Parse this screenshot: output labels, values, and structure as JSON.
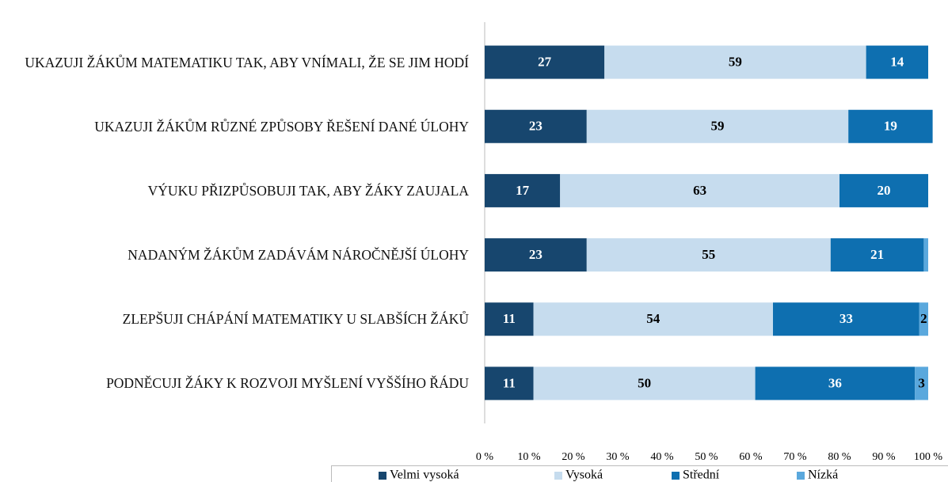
{
  "chart_data": {
    "type": "stacked_barh",
    "categories": [
      "UKAZUJI ŽÁKŮM MATEMATIKU TAK, ABY VNÍMALI, ŽE SE JIM HODÍ",
      "UKAZUJI ŽÁKŮM RŮZNÉ ZPŮSOBY ŘEŠENÍ DANÉ ÚLOHY",
      "VÝUKU PŘIZPŮSOBUJI TAK, ABY ŽÁKY ZAUJALA",
      "NADANÝM ŽÁKŮM ZADÁVÁM NÁROČNĚJŠÍ ÚLOHY",
      "ZLEPŠUJI CHÁPÁNÍ MATEMATIKY U SLABŠÍCH ŽÁKŮ",
      "PODNĚCUJI ŽÁKY K ROZVOJI MYŠLENÍ VYŠŠÍHO ŘÁDU"
    ],
    "series": [
      {
        "name": "Velmi vysoká",
        "color": "#17466e",
        "values": [
          27,
          23,
          17,
          23,
          11,
          11
        ]
      },
      {
        "name": "Vysoká",
        "color": "#c6dcee",
        "values": [
          59,
          59,
          63,
          55,
          54,
          50
        ]
      },
      {
        "name": "Střední",
        "color": "#0e6fb0",
        "values": [
          14,
          19,
          20,
          21,
          33,
          36
        ]
      },
      {
        "name": "Nízká",
        "color": "#5aa8dd",
        "values": [
          0,
          0,
          0,
          1,
          2,
          3
        ],
        "value_labels": [
          null,
          null,
          null,
          null,
          "2",
          "3"
        ]
      }
    ],
    "xlim": [
      0,
      100
    ],
    "xticks": [
      {
        "value": 0,
        "label": "0 %"
      },
      {
        "value": 10,
        "label": "10 %"
      },
      {
        "value": 20,
        "label": "20 %"
      },
      {
        "value": 30,
        "label": "30 %"
      },
      {
        "value": 40,
        "label": "40 %"
      },
      {
        "value": 50,
        "label": "50 %"
      },
      {
        "value": 60,
        "label": "60 %"
      },
      {
        "value": 70,
        "label": "70 %"
      },
      {
        "value": 80,
        "label": "80 %"
      },
      {
        "value": 90,
        "label": "90 %"
      },
      {
        "value": 100,
        "label": "100 %"
      }
    ],
    "grid": false,
    "legend": "bottom"
  }
}
